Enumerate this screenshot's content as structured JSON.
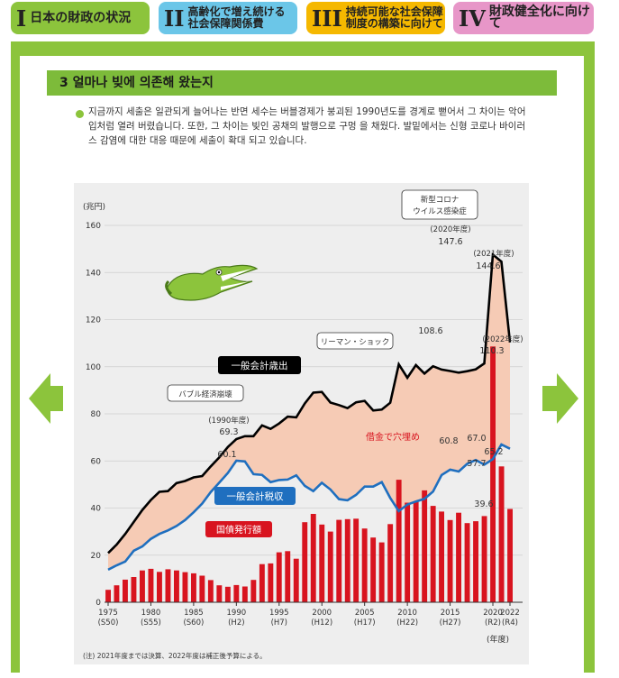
{
  "tabs": [
    {
      "num": "I",
      "label": "日本の財政の状況"
    },
    {
      "num": "II",
      "label1": "高齢化で増え続ける",
      "label2": "社会保障関係費"
    },
    {
      "num": "III",
      "label1": "持続可能な社会保障",
      "label2": "制度の構築に向けて"
    },
    {
      "num": "IV",
      "label": "財政健全化に向けて"
    }
  ],
  "section": {
    "title": "3 얼마나 빚에 의존해 왔는지",
    "intro": "지금까지 세출은 일관되게 늘어나는 반면 세수는 버블경제가 붕괴된 1990년도를 경계로 뻗어서 그 차이는 악어 입처럼 열려 버렸습니다. 또한, 그 차이는 빚인 공채의 발행으로 구멍 을 채웠다. 발밑에서는 신형 코로나 바이러스 감염에 대한 대응 때문에 세출이 확대 되고 있습니다."
  },
  "colors": {
    "expenditure": "#000000",
    "tax": "#1f6fbf",
    "bonds": "#d8141f",
    "gap": "#f6cbb5",
    "accent": "#8cc43c"
  },
  "chart_data": {
    "type": "line",
    "unit_label": "(兆円)",
    "xlabel": "(年度)",
    "ylim": [
      0,
      160
    ],
    "yticks": [
      0,
      20,
      40,
      60,
      80,
      100,
      120,
      140,
      160
    ],
    "x": [
      1975,
      1976,
      1977,
      1978,
      1979,
      1980,
      1981,
      1982,
      1983,
      1984,
      1985,
      1986,
      1987,
      1988,
      1989,
      1990,
      1991,
      1992,
      1993,
      1994,
      1995,
      1996,
      1997,
      1998,
      1999,
      2000,
      2001,
      2002,
      2003,
      2004,
      2005,
      2006,
      2007,
      2008,
      2009,
      2010,
      2011,
      2012,
      2013,
      2014,
      2015,
      2016,
      2017,
      2018,
      2019,
      2020,
      2021,
      2022
    ],
    "xticks": [
      {
        "year": 1975,
        "top": "1975",
        "bottom": "(S50)"
      },
      {
        "year": 1980,
        "top": "1980",
        "bottom": "(S55)"
      },
      {
        "year": 1985,
        "top": "1985",
        "bottom": "(S60)"
      },
      {
        "year": 1990,
        "top": "1990",
        "bottom": "(H2)"
      },
      {
        "year": 1995,
        "top": "1995",
        "bottom": "(H7)"
      },
      {
        "year": 2000,
        "top": "2000",
        "bottom": "(H12)"
      },
      {
        "year": 2005,
        "top": "2005",
        "bottom": "(H17)"
      },
      {
        "year": 2010,
        "top": "2010",
        "bottom": "(H22)"
      },
      {
        "year": 2015,
        "top": "2015",
        "bottom": "(H27)"
      },
      {
        "year": 2020,
        "top": "2020",
        "bottom": "(R2)"
      },
      {
        "year": 2022,
        "top": "2022",
        "bottom": "(R4)"
      }
    ],
    "series": [
      {
        "name": "一般会計歳出",
        "kind": "line",
        "values": [
          20.9,
          24.5,
          29.0,
          34.1,
          39.2,
          43.4,
          46.9,
          47.2,
          50.6,
          51.5,
          53.0,
          53.6,
          57.7,
          61.5,
          65.9,
          69.3,
          70.5,
          70.5,
          75.1,
          73.6,
          75.9,
          78.8,
          78.5,
          84.4,
          89.0,
          89.3,
          84.8,
          83.7,
          82.4,
          84.9,
          85.5,
          81.4,
          81.8,
          84.7,
          101.0,
          95.3,
          100.7,
          97.1,
          100.2,
          98.8,
          98.2,
          97.5,
          98.1,
          98.9,
          101.4,
          147.6,
          144.6,
          110.3
        ]
      },
      {
        "name": "一般会計税収",
        "kind": "line",
        "values": [
          13.8,
          15.7,
          17.3,
          21.9,
          23.7,
          26.9,
          29.0,
          30.5,
          32.4,
          34.9,
          38.2,
          41.9,
          46.8,
          50.8,
          54.9,
          60.1,
          59.8,
          54.4,
          54.1,
          51.0,
          51.9,
          52.1,
          53.9,
          49.4,
          47.2,
          50.7,
          47.9,
          43.8,
          43.3,
          45.6,
          49.1,
          49.1,
          51.0,
          44.3,
          38.7,
          41.5,
          42.8,
          43.9,
          47.0,
          54.0,
          56.3,
          55.5,
          58.8,
          60.4,
          58.4,
          60.8,
          67.0,
          65.2
        ]
      },
      {
        "name": "国債発行額",
        "kind": "bar",
        "values": [
          5.3,
          7.2,
          9.6,
          10.7,
          13.5,
          14.2,
          12.9,
          14.0,
          13.5,
          12.8,
          12.3,
          11.3,
          9.4,
          7.2,
          6.6,
          7.3,
          6.7,
          9.5,
          16.2,
          16.5,
          21.2,
          21.7,
          18.5,
          34.0,
          37.5,
          33.0,
          30.0,
          35.0,
          35.3,
          35.5,
          31.3,
          27.5,
          25.4,
          33.2,
          52.0,
          42.3,
          42.8,
          47.5,
          40.9,
          38.5,
          34.9,
          38.0,
          33.6,
          34.4,
          36.6,
          108.6,
          57.7,
          39.6
        ]
      }
    ],
    "labels": {
      "expenditure": "一般会計歳出",
      "tax": "一般会計税収",
      "bonds": "国債発行額",
      "gap": "借金で穴埋め",
      "bubble": "バブル経済崩壊",
      "lehman": "リーマン・ショック",
      "corona1": "新型コロナ",
      "corona2": "ウイルス感染症"
    },
    "annotations": {
      "y1990_label": "(1990年度)",
      "y1990_value": "69.3",
      "tax1990": "60.1",
      "y2020_label": "(2020年度)",
      "y2020_value": "147.6",
      "y2021_label": "(2021年度)",
      "y2021_value": "144.6",
      "y2022_label": "(2022年度)",
      "y2022_value": "110.3",
      "bond2020": "108.6",
      "tax2020": "60.8",
      "tax2021": "67.0",
      "tax2022": "65.2",
      "bond2021": "57.7",
      "bond2022": "39.6"
    },
    "note": "(注) 2021年度までは決算、2022年度は補正後予算による。"
  }
}
